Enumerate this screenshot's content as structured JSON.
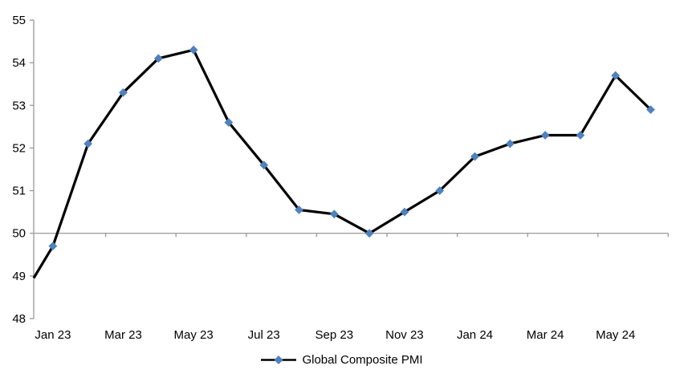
{
  "chart_data": {
    "type": "line",
    "title": "",
    "x": [
      "Jan 23",
      "Feb 23",
      "Mar 23",
      "Apr 23",
      "May 23",
      "Jun 23",
      "Jul 23",
      "Aug 23",
      "Sep 23",
      "Oct 23",
      "Nov 23",
      "Dec 23",
      "Jan 24",
      "Feb 24",
      "Mar 24",
      "Apr 24",
      "May 24",
      "Jun 24"
    ],
    "x_tick_labels": [
      "Jan 23",
      "Mar 23",
      "May 23",
      "Jul 23",
      "Sep 23",
      "Nov 23",
      "Jan 24",
      "Mar 24",
      "May 24"
    ],
    "x_label_interval": 2,
    "series": [
      {
        "name": "Global Composite PMI",
        "values": [
          49.7,
          52.1,
          53.3,
          54.1,
          54.3,
          52.6,
          51.6,
          50.55,
          50.45,
          50.0,
          50.5,
          51.0,
          51.8,
          52.1,
          52.3,
          52.3,
          53.7,
          52.9
        ],
        "line_color": "#000000",
        "marker": "diamond",
        "marker_color": "#4F81BD"
      }
    ],
    "lead_in_at_left_axis": 48.95,
    "ylim": [
      48,
      55
    ],
    "y_ticks": [
      48,
      49,
      50,
      51,
      52,
      53,
      54,
      55
    ],
    "x_axis_crosses_at": 50,
    "grid": false,
    "legend_position": "bottom-center",
    "axis_color": "#a0a0a0",
    "background": "#FFFFFF"
  }
}
